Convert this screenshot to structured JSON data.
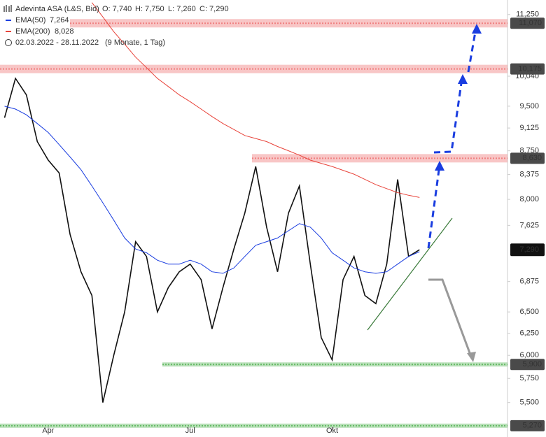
{
  "chart_data": {
    "type": "line",
    "title": "Adevinta ASA (L&S, Bid)",
    "ohlc": [
      "O: 7,740",
      "H: 7,750",
      "L: 7,260",
      "C: 7,290"
    ],
    "period": "02.03.2022 - 28.11.2022",
    "period_note": "(9 Monate, 1 Tag)",
    "log_scale": true,
    "categories": [
      null,
      null,
      null,
      null,
      "Apr",
      null,
      null,
      null,
      null,
      null,
      null,
      null,
      null,
      null,
      null,
      null,
      null,
      "Jul",
      null,
      null,
      null,
      null,
      null,
      null,
      null,
      null,
      null,
      null,
      null,
      null,
      "Okt",
      null,
      null,
      null,
      null,
      null,
      null,
      null,
      null
    ],
    "series": [
      {
        "name": "Adevinta ASA",
        "color": "#111111",
        "values": [
          9300,
          10000,
          9700,
          8900,
          8600,
          8400,
          7500,
          7000,
          6700,
          5500,
          6000,
          6500,
          7400,
          7200,
          6500,
          6800,
          7000,
          7100,
          6900,
          6300,
          6800,
          7300,
          7800,
          8500,
          7600,
          7000,
          7800,
          8200,
          7100,
          6200,
          5950,
          6900,
          7200,
          6700,
          6600,
          7100,
          8300,
          7200,
          7290
        ]
      },
      {
        "name": "EMA(50)",
        "color": "#1a3de0",
        "value_label": "7,264",
        "values": [
          9500,
          9450,
          9350,
          9200,
          9050,
          8850,
          8650,
          8450,
          8200,
          7950,
          7700,
          7450,
          7300,
          7250,
          7150,
          7100,
          7100,
          7150,
          7100,
          7000,
          6980,
          7050,
          7200,
          7350,
          7400,
          7450,
          7550,
          7650,
          7600,
          7450,
          7250,
          7150,
          7050,
          7000,
          6980,
          7000,
          7100,
          7200,
          7264
        ]
      },
      {
        "name": "EMA(200)",
        "color": "#e8433a",
        "value_label": "8,028",
        "values": [
          null,
          null,
          null,
          null,
          null,
          null,
          null,
          null,
          11500,
          11200,
          10900,
          10650,
          10400,
          10200,
          10000,
          9850,
          9700,
          9580,
          9450,
          9320,
          9200,
          9100,
          9000,
          8950,
          8900,
          8820,
          8750,
          8680,
          8600,
          8550,
          8500,
          8440,
          8380,
          8300,
          8220,
          8160,
          8100,
          8060,
          8028
        ]
      }
    ],
    "last_price": {
      "value": 7290,
      "label": "7,290"
    },
    "levels": [
      {
        "value": 11070,
        "label": "11,070",
        "color": "#f08080"
      },
      {
        "value": 10175,
        "label": "10,175",
        "color": "#f08080"
      },
      {
        "value": 8630,
        "label": "8,630",
        "color": "#f08080"
      },
      {
        "value": 5900,
        "label": "5,900",
        "color": "#66bb66"
      },
      {
        "value": 5270,
        "label": "5,270",
        "color": "#66bb66"
      }
    ],
    "ylim": [
      5262,
      11555
    ],
    "yticks": [
      {
        "value": 11250,
        "label": "11,250"
      },
      {
        "value": 10040,
        "label": "10,040"
      },
      {
        "value": 9500,
        "label": "9,500"
      },
      {
        "value": 9125,
        "label": "9,125"
      },
      {
        "value": 8750,
        "label": "8,750"
      },
      {
        "value": 8375,
        "label": "8,375"
      },
      {
        "value": 8000,
        "label": "8,000"
      },
      {
        "value": 7625,
        "label": "7,625"
      },
      {
        "value": 6875,
        "label": "6,875"
      },
      {
        "value": 6500,
        "label": "6,500"
      },
      {
        "value": 6250,
        "label": "6,250"
      },
      {
        "value": 6000,
        "label": "6,000"
      },
      {
        "value": 5750,
        "label": "5,750"
      },
      {
        "value": 5500,
        "label": "5,500"
      }
    ]
  }
}
